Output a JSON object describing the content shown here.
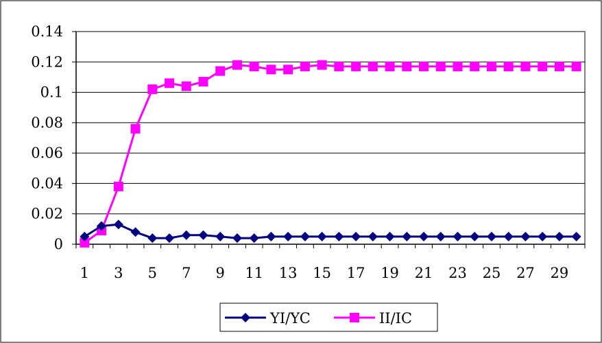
{
  "chart_data": {
    "type": "line",
    "title": "",
    "xlabel": "",
    "ylabel": "",
    "x": [
      1,
      2,
      3,
      4,
      5,
      6,
      7,
      8,
      9,
      10,
      11,
      12,
      13,
      14,
      15,
      16,
      17,
      18,
      19,
      20,
      21,
      22,
      23,
      24,
      25,
      26,
      27,
      28,
      29,
      30
    ],
    "x_tick_labels": [
      "1",
      "3",
      "5",
      "7",
      "9",
      "11",
      "13",
      "15",
      "17",
      "19",
      "21",
      "23",
      "25",
      "27",
      "29"
    ],
    "y_tick_labels": [
      "0",
      "0.02",
      "0.04",
      "0.06",
      "0.08",
      "0.1",
      "0.12",
      "0.14"
    ],
    "ylim": [
      0,
      0.14
    ],
    "grid": "horizontal",
    "legend_position": "bottom",
    "series": [
      {
        "name": "YI/YC",
        "color": "#000080",
        "marker": "diamond",
        "values": [
          0.005,
          0.012,
          0.013,
          0.008,
          0.004,
          0.004,
          0.006,
          0.006,
          0.005,
          0.004,
          0.004,
          0.005,
          0.005,
          0.005,
          0.005,
          0.005,
          0.005,
          0.005,
          0.005,
          0.005,
          0.005,
          0.005,
          0.005,
          0.005,
          0.005,
          0.005,
          0.005,
          0.005,
          0.005,
          0.005
        ]
      },
      {
        "name": "II/IC",
        "color": "#ff00ff",
        "marker": "square",
        "values": [
          0.001,
          0.009,
          0.038,
          0.076,
          0.102,
          0.106,
          0.104,
          0.107,
          0.114,
          0.118,
          0.117,
          0.115,
          0.115,
          0.117,
          0.118,
          0.117,
          0.117,
          0.117,
          0.117,
          0.117,
          0.117,
          0.117,
          0.117,
          0.117,
          0.117,
          0.117,
          0.117,
          0.117,
          0.117,
          0.117
        ]
      }
    ]
  }
}
